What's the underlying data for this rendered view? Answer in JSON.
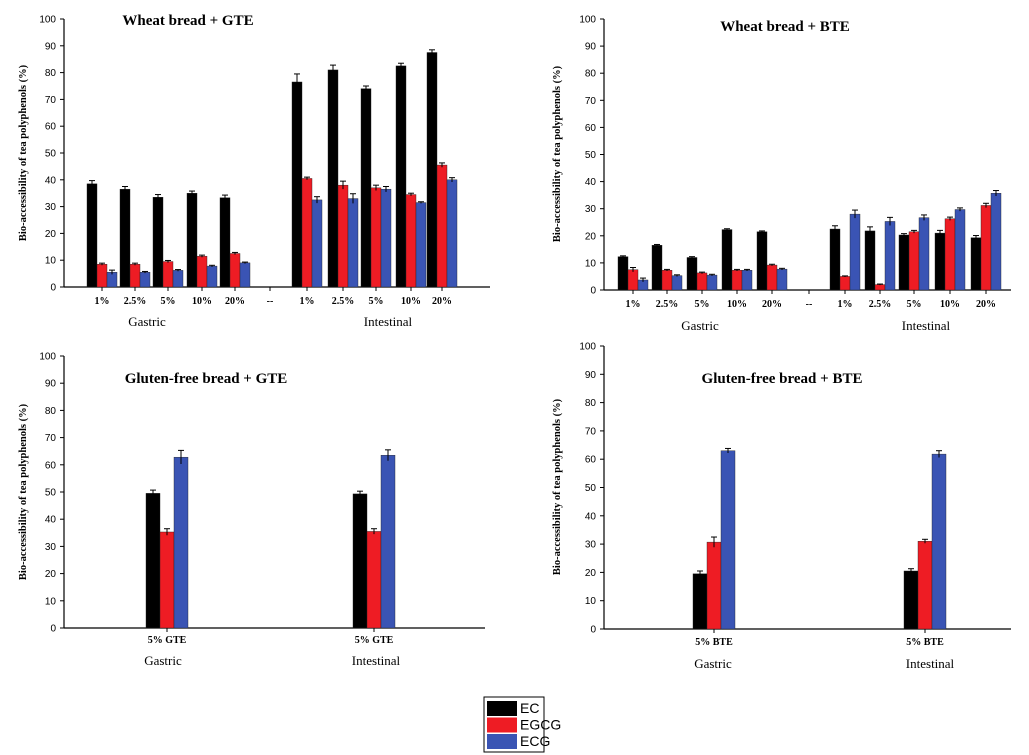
{
  "figure": {
    "legend": [
      {
        "label": "EC",
        "color": "#000000"
      },
      {
        "label": "EGCG",
        "color": "#ee1c24"
      },
      {
        "label": "ECG",
        "color": "#3a54b4"
      }
    ]
  },
  "chart_data": [
    {
      "type": "bar",
      "title": "Wheat bread + GTE",
      "ylabel": "Bio-accessibility of tea polyphenols (%)",
      "ylim": [
        0,
        100
      ],
      "yticks": [
        0,
        10,
        20,
        30,
        40,
        50,
        60,
        70,
        80,
        90,
        100
      ],
      "categories": [
        "1%",
        "2.5%",
        "5%",
        "10%",
        "20%",
        "--",
        "1%",
        "2.5%",
        "5%",
        "10%",
        "20%"
      ],
      "groups": [
        "Gastric",
        "Intestinal"
      ],
      "series": [
        {
          "name": "EC",
          "color": "#000000",
          "values": [
            38.5,
            36.5,
            33.5,
            35,
            33.3,
            null,
            76.5,
            81,
            74,
            82.5,
            87.5
          ],
          "errors": [
            1.2,
            1,
            1,
            0.8,
            1,
            null,
            3,
            1.8,
            1,
            1,
            1
          ]
        },
        {
          "name": "EGCG",
          "color": "#ee1c24",
          "values": [
            8.5,
            8.5,
            9.5,
            11.5,
            12.5,
            null,
            40.5,
            38,
            37,
            34.5,
            45.5
          ],
          "errors": [
            0.4,
            0.4,
            0.4,
            0.4,
            0.4,
            null,
            0.5,
            1.5,
            1,
            0.5,
            0.8
          ]
        },
        {
          "name": "ECG",
          "color": "#3a54b4",
          "values": [
            5.5,
            5.5,
            6.2,
            7.8,
            9,
            null,
            32.5,
            33,
            36.5,
            31.5,
            40
          ],
          "errors": [
            0.8,
            0.3,
            0.3,
            0.3,
            0.3,
            null,
            1.2,
            1.8,
            1,
            0.3,
            0.8
          ]
        }
      ]
    },
    {
      "type": "bar",
      "title": "Wheat bread + BTE",
      "ylabel": "Bio-accessibility of tea polyphenols (%)",
      "ylim": [
        0,
        100
      ],
      "yticks": [
        0,
        10,
        20,
        30,
        40,
        50,
        60,
        70,
        80,
        90,
        100
      ],
      "categories": [
        "1%",
        "2.5%",
        "5%",
        "10%",
        "20%",
        "--",
        "1%",
        "2.5%",
        "5%",
        "10%",
        "20%"
      ],
      "groups": [
        "Gastric",
        "Intestinal"
      ],
      "series": [
        {
          "name": "EC",
          "color": "#000000",
          "values": [
            12.3,
            16.5,
            12,
            22.3,
            21.5,
            null,
            22.5,
            21.8,
            20.3,
            21,
            19.3
          ],
          "errors": [
            0.3,
            0.3,
            0.3,
            0.3,
            0.3,
            null,
            1.2,
            1.5,
            0.5,
            1,
            0.8
          ]
        },
        {
          "name": "EGCG",
          "color": "#ee1c24",
          "values": [
            7.5,
            7.3,
            6.3,
            7.3,
            9.2,
            null,
            5,
            2,
            21.5,
            26.3,
            31.2
          ],
          "errors": [
            0.8,
            0.3,
            0.3,
            0.3,
            0.3,
            null,
            0.2,
            0.2,
            0.5,
            0.6,
            0.8
          ]
        },
        {
          "name": "ECG",
          "color": "#3a54b4",
          "values": [
            3.7,
            5.3,
            5.5,
            7.3,
            7.7,
            null,
            28,
            25.3,
            26.7,
            29.7,
            35.7
          ],
          "errors": [
            0.7,
            0.3,
            0.3,
            0.3,
            0.3,
            null,
            1.5,
            1.5,
            1,
            0.6,
            1
          ]
        }
      ]
    },
    {
      "type": "bar",
      "title": "Gluten-free bread + GTE",
      "ylabel": "Bio-accessibility of tea polyphenols (%)",
      "ylim": [
        0,
        100
      ],
      "yticks": [
        0,
        10,
        20,
        30,
        40,
        50,
        60,
        70,
        80,
        90,
        100
      ],
      "categories": [
        "5% GTE",
        "5% GTE"
      ],
      "groups": [
        "Gastric",
        "Intestinal"
      ],
      "series": [
        {
          "name": "EC",
          "color": "#000000",
          "values": [
            49.5,
            49.3
          ],
          "errors": [
            1.2,
            1
          ]
        },
        {
          "name": "EGCG",
          "color": "#ee1c24",
          "values": [
            35.3,
            35.5
          ],
          "errors": [
            1.2,
            1
          ]
        },
        {
          "name": "ECG",
          "color": "#3a54b4",
          "values": [
            62.8,
            63.5
          ],
          "errors": [
            2.5,
            2
          ]
        }
      ]
    },
    {
      "type": "bar",
      "title": "Gluten-free bread + BTE",
      "ylabel": "Bio-accessibility of tea polyphenols (%)",
      "ylim": [
        0,
        100
      ],
      "yticks": [
        0,
        10,
        20,
        30,
        40,
        50,
        60,
        70,
        80,
        90,
        100
      ],
      "categories": [
        "5% BTE",
        "5% BTE"
      ],
      "groups": [
        "Gastric",
        "Intestinal"
      ],
      "series": [
        {
          "name": "EC",
          "color": "#000000",
          "values": [
            19.5,
            20.5
          ],
          "errors": [
            1,
            0.8
          ]
        },
        {
          "name": "EGCG",
          "color": "#ee1c24",
          "values": [
            30.7,
            31
          ],
          "errors": [
            1.8,
            0.7
          ]
        },
        {
          "name": "ECG",
          "color": "#3a54b4",
          "values": [
            63,
            61.8
          ],
          "errors": [
            0.8,
            1.2
          ]
        }
      ]
    }
  ]
}
